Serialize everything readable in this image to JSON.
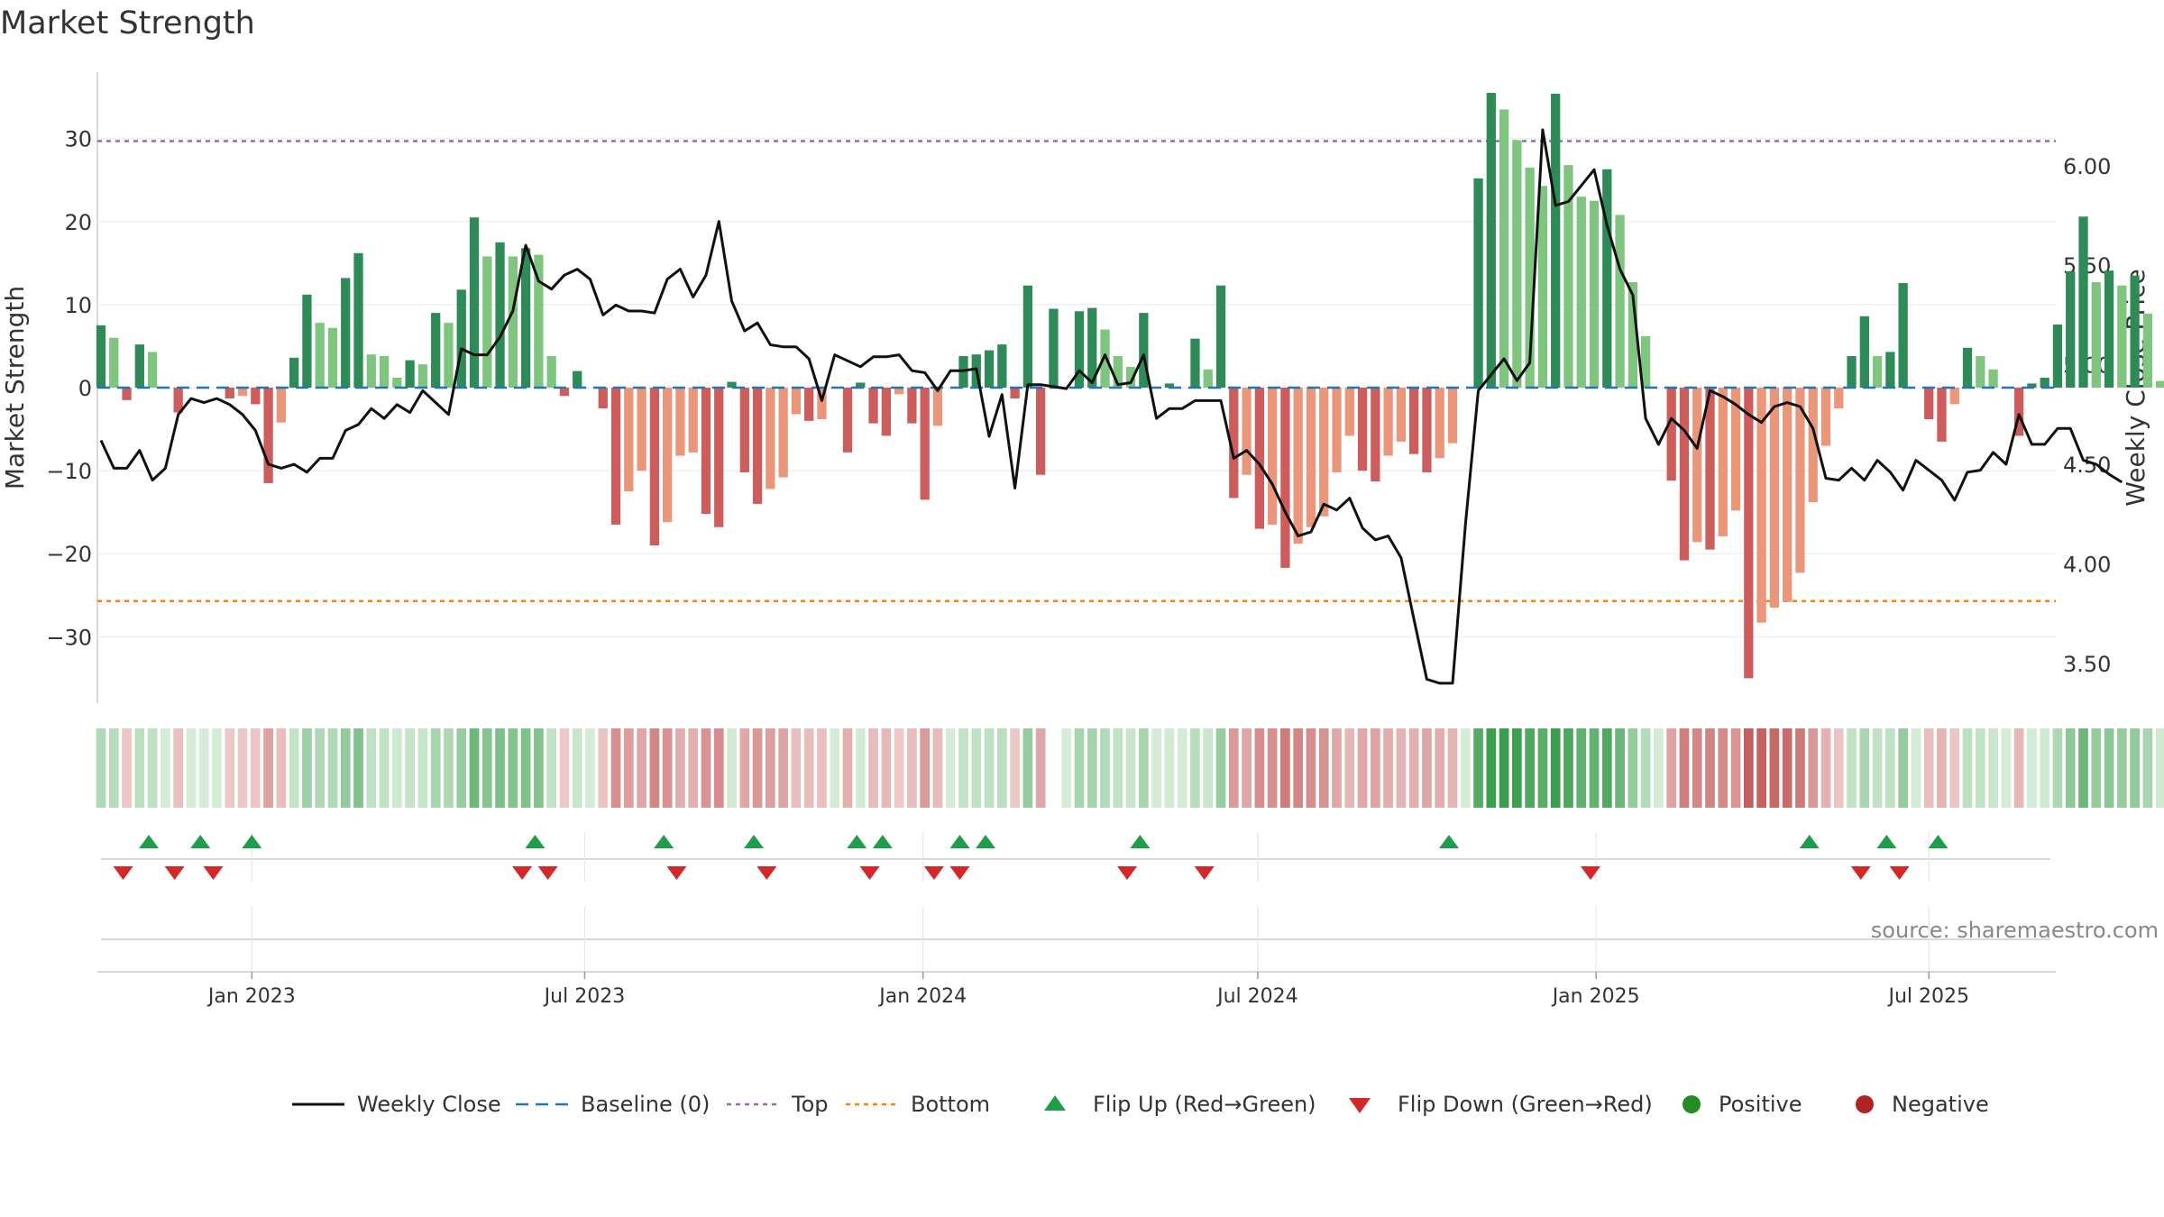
{
  "title": "Market Strength",
  "source": "source: sharemaestro.com",
  "colors": {
    "pos_strong": "#2e8b57",
    "pos_light": "#7fc47f",
    "neg_strong": "#cd5c5c",
    "neg_light": "#e9967a",
    "line": "#111111",
    "baseline": "#1f77b4",
    "top": "#9467bd",
    "bottom": "#ff7f0e",
    "flip_up": "#1e9e4a",
    "flip_down": "#d62728",
    "positive": "#228b22",
    "negative": "#b22222"
  },
  "chart_data": {
    "type": "bar",
    "title": "Market Strength",
    "ylabel": "Market Strength",
    "y2label": "Weekly Close Price",
    "ylim": [
      -38,
      38
    ],
    "y_ticks": [
      30,
      20,
      10,
      0,
      -10,
      -20,
      -30
    ],
    "y_tick_labels": [
      "30",
      "20",
      "10",
      "0",
      "−10",
      "−20",
      "−30"
    ],
    "y2lim": [
      3.3,
      6.47
    ],
    "y2_ticks": [
      6.0,
      5.5,
      5.0,
      4.5,
      4.0,
      3.5
    ],
    "y2_tick_labels": [
      "6.00",
      "5.50",
      "5.00",
      "4.50",
      "4.00",
      "3.50"
    ],
    "x_range": [
      "2022-10-09",
      "2025-09-08"
    ],
    "x_ticks": [
      "2023-01-01",
      "2023-07-01",
      "2024-01-01",
      "2024-07-01",
      "2025-01-01",
      "2025-07-01"
    ],
    "x_tick_labels": [
      "Jan 2023",
      "Jul 2023",
      "Jan 2024",
      "Jul 2024",
      "Jan 2025",
      "Jul 2025"
    ],
    "top_level": 29.7,
    "bottom_level": -25.7,
    "baseline": 0,
    "start_date": "2022-10-09",
    "strength": [
      7.5,
      6,
      -1.5,
      5.2,
      4.3,
      0,
      -3,
      0,
      0,
      0,
      -1.3,
      -1,
      -2,
      -11.5,
      -4.2,
      3.6,
      11.2,
      7.8,
      7.2,
      13.2,
      16.2,
      4,
      3.8,
      1.2,
      3.3,
      2.8,
      9,
      7.8,
      11.8,
      20.5,
      15.8,
      17.5,
      15.8,
      16.8,
      16,
      3.8,
      -1,
      2,
      0,
      -2.5,
      -16.5,
      -12.5,
      -10,
      -19,
      -16.2,
      -8.2,
      -7.8,
      -15.2,
      -16.8,
      0.7,
      -10.2,
      -14,
      -12.2,
      -10.8,
      -3.2,
      -4,
      -3.8,
      0,
      -7.8,
      0.6,
      -4.3,
      -5.8,
      -0.8,
      -4.3,
      -13.5,
      -4.6,
      0,
      3.8,
      4,
      4.5,
      5.2,
      -1.3,
      12.3,
      -10.5,
      9.5,
      0,
      9.2,
      9.6,
      7,
      3.8,
      2.5,
      9,
      0,
      0.5,
      0,
      5.9,
      2.2,
      12.3,
      -13.3,
      -10.5,
      -17,
      -16.5,
      -21.7,
      -18.8,
      -16.8,
      -15.5,
      -10.2,
      -5.8,
      -10,
      -11.3,
      -8.2,
      -6.5,
      -8,
      -10.2,
      -8.5,
      -6.7,
      0,
      25.2,
      35.5,
      33.5,
      29.8,
      26.5,
      24.3,
      35.4,
      26.8,
      23,
      22.5,
      26.3,
      20.8,
      12.7,
      6.2,
      0,
      -11.2,
      -20.8,
      -18.6,
      -19.5,
      -17.9,
      -14.8,
      -35,
      -28.3,
      -26.5,
      -25.8,
      -22.3,
      -13.8,
      -7,
      -2.5,
      3.8,
      8.6,
      3.8,
      4.3,
      12.6,
      0,
      -3.8,
      -6.5,
      -2,
      4.8,
      3.8,
      2.2,
      0,
      -5.8,
      0.5,
      1.2,
      7.6,
      14,
      20.6,
      12.7,
      14.1,
      12.3,
      13.5,
      8.9,
      0.8,
      -0.3
    ],
    "close": [
      4.62,
      4.48,
      4.48,
      4.57,
      4.42,
      4.48,
      4.75,
      4.83,
      4.81,
      4.83,
      4.8,
      4.75,
      4.67,
      4.5,
      4.48,
      4.5,
      4.46,
      4.53,
      4.53,
      4.67,
      4.7,
      4.78,
      4.73,
      4.8,
      4.76,
      4.87,
      4.81,
      4.75,
      5.08,
      5.05,
      5.05,
      5.14,
      5.27,
      5.6,
      5.42,
      5.38,
      5.45,
      5.48,
      5.43,
      5.25,
      5.3,
      5.27,
      5.27,
      5.26,
      5.43,
      5.48,
      5.34,
      5.45,
      5.72,
      5.32,
      5.17,
      5.21,
      5.1,
      5.09,
      5.09,
      5.03,
      4.82,
      5.05,
      5.02,
      4.99,
      5.04,
      5.04,
      5.05,
      4.97,
      4.96,
      4.87,
      4.97,
      4.97,
      4.98,
      4.64,
      4.85,
      4.38,
      4.9,
      4.9,
      4.89,
      4.88,
      4.97,
      4.91,
      5.05,
      4.9,
      4.91,
      5.05,
      4.73,
      4.78,
      4.78,
      4.82,
      4.82,
      4.82,
      4.53,
      4.57,
      4.5,
      4.4,
      4.26,
      4.14,
      4.16,
      4.3,
      4.27,
      4.33,
      4.18,
      4.12,
      4.14,
      4.03,
      3.72,
      3.42,
      3.4,
      3.4,
      4.2,
      4.87,
      4.95,
      5.03,
      4.92,
      5.01,
      6.18,
      5.8,
      5.82,
      5.9,
      5.98,
      5.7,
      5.48,
      5.35,
      4.73,
      4.6,
      4.73,
      4.67,
      4.58,
      4.87,
      4.84,
      4.8,
      4.75,
      4.71,
      4.79,
      4.81,
      4.79,
      4.68,
      4.43,
      4.42,
      4.48,
      4.42,
      4.52,
      4.46,
      4.37,
      4.52,
      4.47,
      4.42,
      4.32,
      4.46,
      4.47,
      4.56,
      4.5,
      4.75,
      4.6,
      4.6,
      4.68,
      4.68,
      4.52,
      4.5,
      4.45,
      4.41
    ],
    "strip": {
      "note": "per-week strength shown as colored cells; gap between Feb and Mar 2024",
      "gap_weeks": [
        74
      ]
    },
    "flip_up_dates": [
      "2022-11-06",
      "2022-12-04",
      "2023-01-01",
      "2023-06-04",
      "2023-08-13",
      "2023-10-01",
      "2023-11-26",
      "2023-12-10",
      "2024-01-21",
      "2024-02-04",
      "2024-04-28",
      "2024-10-13",
      "2025-04-27",
      "2025-06-08",
      "2025-07-06"
    ],
    "flip_down_dates": [
      "2022-10-23",
      "2022-11-20",
      "2022-12-11",
      "2023-05-28",
      "2023-06-11",
      "2023-08-20",
      "2023-10-08",
      "2023-12-03",
      "2024-01-07",
      "2024-01-21",
      "2024-04-21",
      "2024-06-02",
      "2024-12-29",
      "2025-05-25",
      "2025-06-15"
    ],
    "legend": {
      "position": "bottom-center",
      "items": [
        {
          "key": "line",
          "label": "Weekly Close"
        },
        {
          "key": "baseline",
          "label": "Baseline (0)"
        },
        {
          "key": "top",
          "label": "Top"
        },
        {
          "key": "bottom",
          "label": "Bottom"
        },
        {
          "key": "flip_up",
          "label": "Flip Up (Red→Green)"
        },
        {
          "key": "flip_down",
          "label": "Flip Down (Green→Red)"
        },
        {
          "key": "positive",
          "label": "Positive"
        },
        {
          "key": "negative",
          "label": "Negative"
        }
      ]
    }
  }
}
